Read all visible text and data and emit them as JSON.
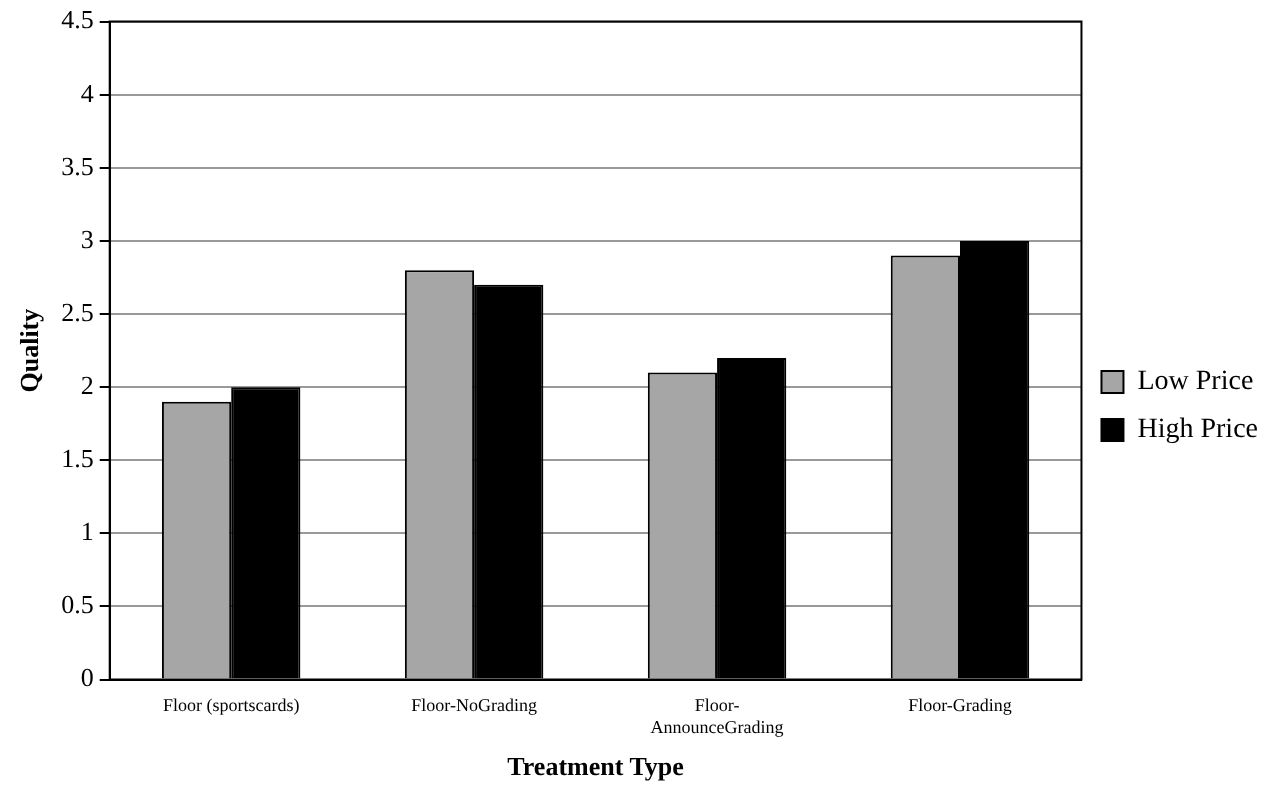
{
  "chart_data": {
    "type": "bar",
    "xlabel": "Treatment Type",
    "ylabel": "Quality",
    "categories": [
      "Floor (sportscards)",
      "Floor-NoGrading",
      "Floor-AnnounceGrading",
      "Floor-Grading"
    ],
    "series": [
      {
        "name": "Low Price",
        "color": "#a6a6a6",
        "values": [
          1.9,
          2.8,
          2.1,
          2.9
        ]
      },
      {
        "name": "High Price",
        "color": "#000000",
        "values": [
          2.0,
          2.7,
          2.2,
          3.0
        ]
      }
    ],
    "ylim": [
      0,
      4.5
    ],
    "yticks": [
      0,
      0.5,
      1,
      1.5,
      2,
      2.5,
      3,
      3.5,
      4,
      4.5
    ],
    "grid": "y",
    "legend": "right"
  }
}
